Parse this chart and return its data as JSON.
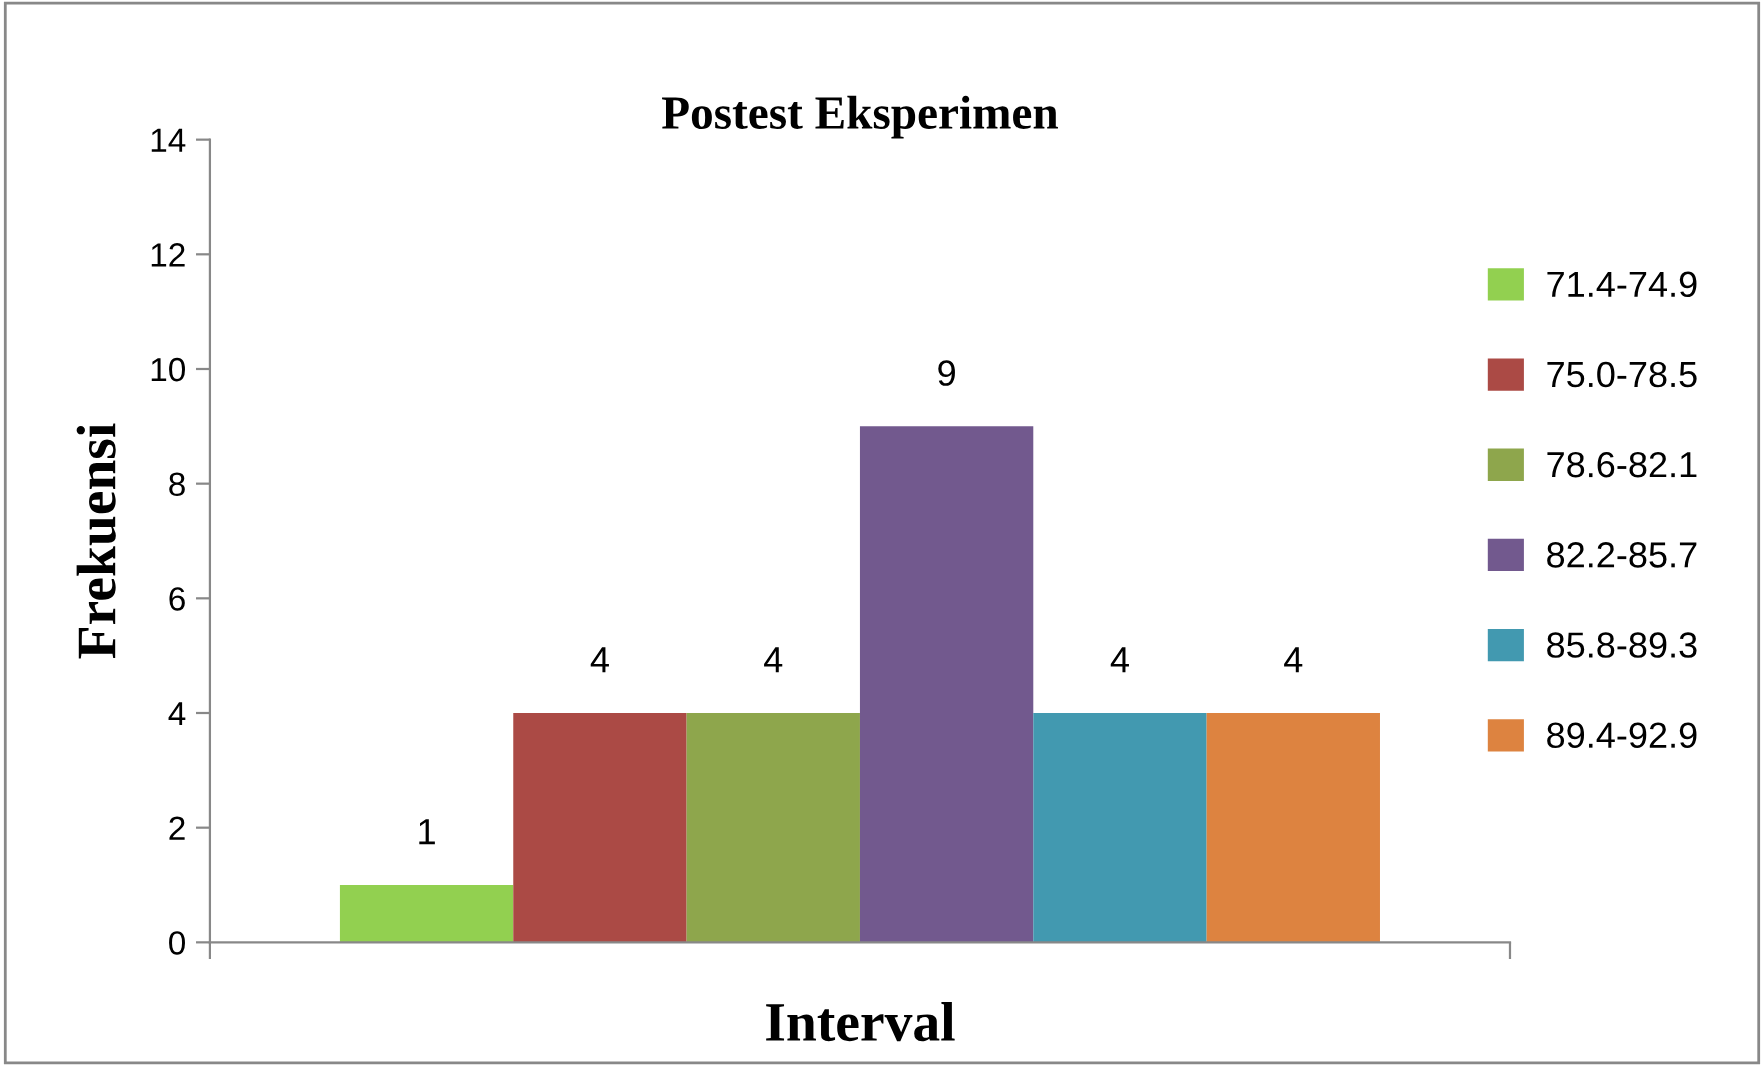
{
  "chart_data": {
    "type": "bar",
    "title": "Postest Eksperimen",
    "xlabel": "Interval",
    "ylabel": "Frekuensi",
    "categories": [
      null
    ],
    "series": [
      {
        "name": "71.4-74.9",
        "color": "#92d050",
        "values": [
          1
        ]
      },
      {
        "name": "75.0-78.5",
        "color": "#ab4a45",
        "values": [
          4
        ]
      },
      {
        "name": "78.6-82.1",
        "color": "#8ea64c",
        "values": [
          4
        ]
      },
      {
        "name": "82.2-85.7",
        "color": "#72598e",
        "values": [
          9
        ]
      },
      {
        "name": "85.8-89.3",
        "color": "#4299b0",
        "values": [
          4
        ]
      },
      {
        "name": "89.4-92.9",
        "color": "#dd8340",
        "values": [
          4
        ]
      }
    ],
    "ylim": [
      0,
      14
    ],
    "yticks": [
      0,
      2,
      4,
      6,
      8,
      10,
      12,
      14
    ],
    "data_labels": true,
    "grid": false,
    "legend": "right"
  }
}
